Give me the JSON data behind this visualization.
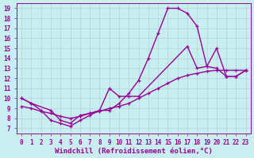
{
  "xlabel": "Windchill (Refroidissement éolien,°C)",
  "xlim": [
    -0.5,
    23.5
  ],
  "ylim": [
    6.5,
    19.5
  ],
  "yticks": [
    7,
    8,
    9,
    10,
    11,
    12,
    13,
    14,
    15,
    16,
    17,
    18,
    19
  ],
  "xticks": [
    0,
    1,
    2,
    3,
    4,
    5,
    6,
    7,
    8,
    9,
    10,
    11,
    12,
    13,
    14,
    15,
    16,
    17,
    18,
    19,
    20,
    21,
    22,
    23
  ],
  "background_color": "#c8eef0",
  "grid_color": "#aed6d8",
  "line_color": "#990099",
  "line1_x": [
    0,
    1,
    2,
    3,
    4,
    5,
    6,
    7,
    8,
    9,
    10,
    11,
    12,
    13,
    14,
    15,
    16,
    17,
    18,
    19,
    20,
    21,
    22,
    23
  ],
  "line1_y": [
    10,
    9.5,
    8.8,
    7.8,
    7.5,
    7.2,
    7.8,
    8.3,
    8.8,
    8.8,
    9.5,
    10.5,
    11.8,
    14.0,
    16.5,
    19.0,
    19.0,
    18.5,
    17.2,
    13.2,
    13.0,
    12.2,
    12.2,
    12.8
  ],
  "line2_x": [
    0,
    1,
    3,
    4,
    5,
    6,
    7,
    8,
    9,
    10,
    11,
    12,
    17,
    18,
    19,
    20,
    21,
    22,
    23
  ],
  "line2_y": [
    10,
    9.5,
    8.8,
    7.8,
    7.5,
    8.3,
    8.5,
    8.8,
    11.0,
    10.2,
    10.2,
    10.2,
    15.2,
    13.0,
    13.2,
    15.0,
    12.2,
    12.2,
    12.8
  ],
  "line3_x": [
    0,
    1,
    2,
    3,
    4,
    5,
    6,
    7,
    8,
    9,
    10,
    11,
    12,
    13,
    14,
    15,
    16,
    17,
    18,
    19,
    20,
    21,
    22,
    23
  ],
  "line3_y": [
    9.2,
    9.0,
    8.7,
    8.5,
    8.2,
    8.0,
    8.2,
    8.5,
    8.7,
    9.0,
    9.2,
    9.5,
    10.0,
    10.5,
    11.0,
    11.5,
    12.0,
    12.3,
    12.5,
    12.7,
    12.8,
    12.8,
    12.8,
    12.8
  ],
  "marker": "+",
  "marker_size": 3.5,
  "line_width": 1.0,
  "tick_labelsize": 5.5,
  "xlabel_fontsize": 6.5,
  "line_color2": "#990099",
  "tick_color": "#990099",
  "axis_color": "#990099"
}
